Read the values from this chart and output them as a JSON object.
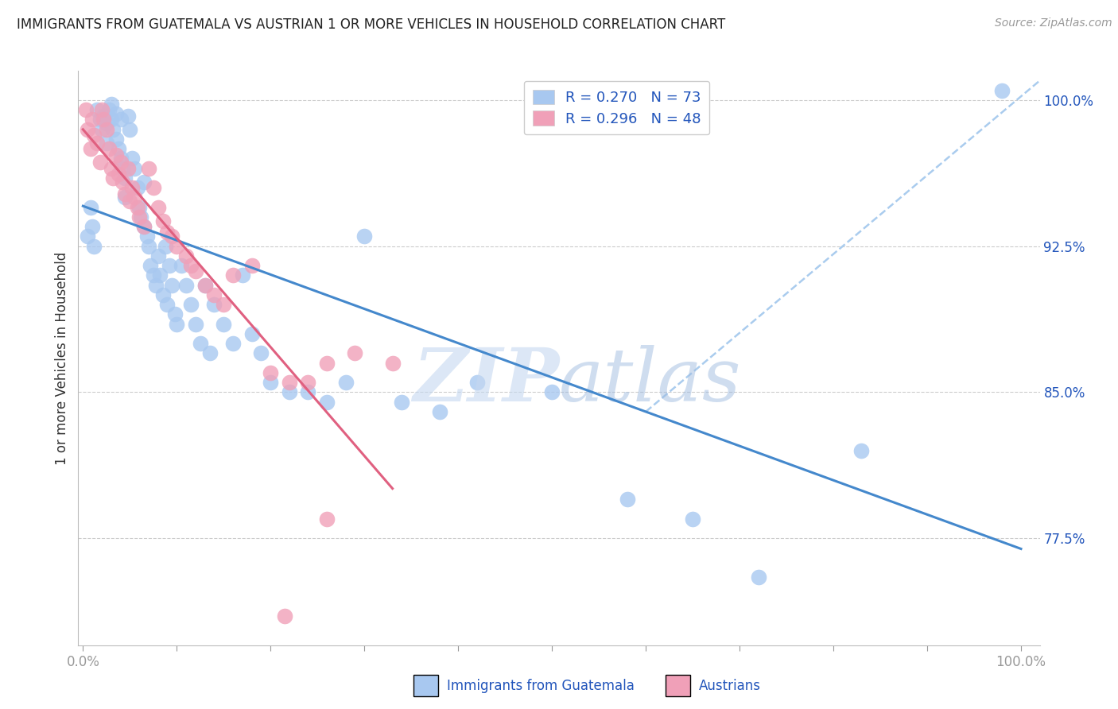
{
  "title": "IMMIGRANTS FROM GUATEMALA VS AUSTRIAN 1 OR MORE VEHICLES IN HOUSEHOLD CORRELATION CHART",
  "source": "Source: ZipAtlas.com",
  "ylabel": "1 or more Vehicles in Household",
  "legend_r_blue": "R = 0.270",
  "legend_n_blue": "N = 73",
  "legend_r_pink": "R = 0.296",
  "legend_n_pink": "N = 48",
  "blue_color": "#a8c8f0",
  "pink_color": "#f0a0b8",
  "blue_line_color": "#4488cc",
  "pink_line_color": "#e06080",
  "dashed_line_color": "#aaccee",
  "axis_label_color": "#2255bb",
  "grid_color": "#cccccc",
  "ymin": 72.0,
  "ymax": 101.5,
  "xmin": -0.005,
  "xmax": 1.02,
  "blue_scatter_x": [
    0.005,
    0.008,
    0.01,
    0.012,
    0.015,
    0.018,
    0.02,
    0.022,
    0.025,
    0.025,
    0.028,
    0.03,
    0.03,
    0.032,
    0.035,
    0.035,
    0.038,
    0.04,
    0.04,
    0.042,
    0.045,
    0.045,
    0.048,
    0.05,
    0.052,
    0.055,
    0.058,
    0.06,
    0.062,
    0.065,
    0.065,
    0.068,
    0.07,
    0.072,
    0.075,
    0.078,
    0.08,
    0.082,
    0.085,
    0.088,
    0.09,
    0.092,
    0.095,
    0.098,
    0.1,
    0.105,
    0.11,
    0.115,
    0.12,
    0.125,
    0.13,
    0.135,
    0.14,
    0.15,
    0.16,
    0.17,
    0.18,
    0.19,
    0.2,
    0.22,
    0.24,
    0.26,
    0.28,
    0.3,
    0.34,
    0.38,
    0.42,
    0.5,
    0.58,
    0.65,
    0.72,
    0.83,
    0.98
  ],
  "blue_scatter_y": [
    93.0,
    94.5,
    93.5,
    92.5,
    99.5,
    99.0,
    98.5,
    99.2,
    98.8,
    97.8,
    99.5,
    99.8,
    99.0,
    98.5,
    99.3,
    98.0,
    97.5,
    99.0,
    97.0,
    96.5,
    96.0,
    95.0,
    99.2,
    98.5,
    97.0,
    96.5,
    95.5,
    94.5,
    94.0,
    95.8,
    93.5,
    93.0,
    92.5,
    91.5,
    91.0,
    90.5,
    92.0,
    91.0,
    90.0,
    92.5,
    89.5,
    91.5,
    90.5,
    89.0,
    88.5,
    91.5,
    90.5,
    89.5,
    88.5,
    87.5,
    90.5,
    87.0,
    89.5,
    88.5,
    87.5,
    91.0,
    88.0,
    87.0,
    85.5,
    85.0,
    85.0,
    84.5,
    85.5,
    93.0,
    84.5,
    84.0,
    85.5,
    85.0,
    79.5,
    78.5,
    75.5,
    82.0,
    100.5
  ],
  "pink_scatter_x": [
    0.003,
    0.005,
    0.008,
    0.01,
    0.012,
    0.015,
    0.018,
    0.02,
    0.022,
    0.025,
    0.028,
    0.03,
    0.032,
    0.035,
    0.038,
    0.04,
    0.042,
    0.045,
    0.048,
    0.05,
    0.052,
    0.055,
    0.058,
    0.06,
    0.065,
    0.07,
    0.075,
    0.08,
    0.085,
    0.09,
    0.095,
    0.1,
    0.11,
    0.115,
    0.12,
    0.13,
    0.14,
    0.15,
    0.16,
    0.18,
    0.2,
    0.22,
    0.24,
    0.26,
    0.29,
    0.33,
    0.26,
    0.215
  ],
  "pink_scatter_y": [
    99.5,
    98.5,
    97.5,
    99.0,
    98.2,
    97.8,
    96.8,
    99.5,
    99.0,
    98.5,
    97.5,
    96.5,
    96.0,
    97.2,
    96.2,
    96.8,
    95.8,
    95.2,
    96.5,
    94.8,
    95.5,
    95.0,
    94.5,
    94.0,
    93.5,
    96.5,
    95.5,
    94.5,
    93.8,
    93.2,
    93.0,
    92.5,
    92.0,
    91.5,
    91.2,
    90.5,
    90.0,
    89.5,
    91.0,
    91.5,
    86.0,
    85.5,
    85.5,
    86.5,
    87.0,
    86.5,
    78.5,
    73.5
  ]
}
